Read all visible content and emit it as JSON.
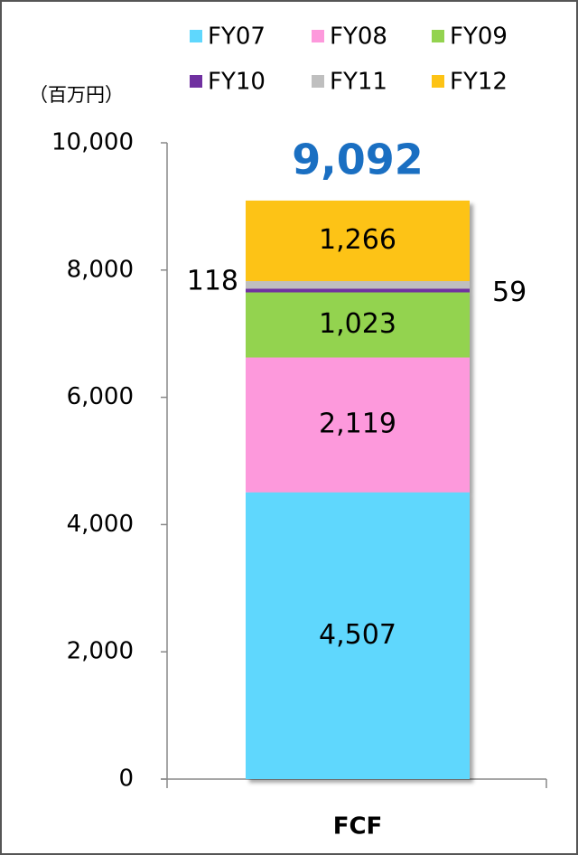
{
  "chart_data": {
    "type": "stacked_bar",
    "y_axis_label": "（百万円）",
    "categories": [
      "FCF"
    ],
    "series": [
      {
        "name": "FY07",
        "color": "#5fd7fd",
        "values": [
          4507
        ],
        "value_labels": [
          "4,507"
        ]
      },
      {
        "name": "FY08",
        "color": "#fd99dc",
        "values": [
          2119
        ],
        "value_labels": [
          "2,119"
        ]
      },
      {
        "name": "FY09",
        "color": "#93d34f",
        "values": [
          1023
        ],
        "value_labels": [
          "1,023"
        ]
      },
      {
        "name": "FY10",
        "color": "#7030a0",
        "values": [
          59
        ],
        "value_labels": [
          "59"
        ]
      },
      {
        "name": "FY11",
        "color": "#bfbfbf",
        "values": [
          118
        ],
        "value_labels": [
          "118"
        ]
      },
      {
        "name": "FY12",
        "color": "#fdc315",
        "values": [
          1266
        ],
        "value_labels": [
          "1,266"
        ]
      }
    ],
    "total": {
      "value": 9092,
      "label": "9,092",
      "color": "#1a6fc2"
    },
    "ylim": [
      0,
      10000
    ],
    "yticks": [
      0,
      {
        "value": 2000,
        "label": "2,000"
      },
      {
        "value": 4000,
        "label": "4,000"
      },
      {
        "value": 6000,
        "label": "6,000"
      },
      {
        "value": 8000,
        "label": "8,000"
      },
      {
        "value": 10000,
        "label": "10,000"
      }
    ]
  }
}
